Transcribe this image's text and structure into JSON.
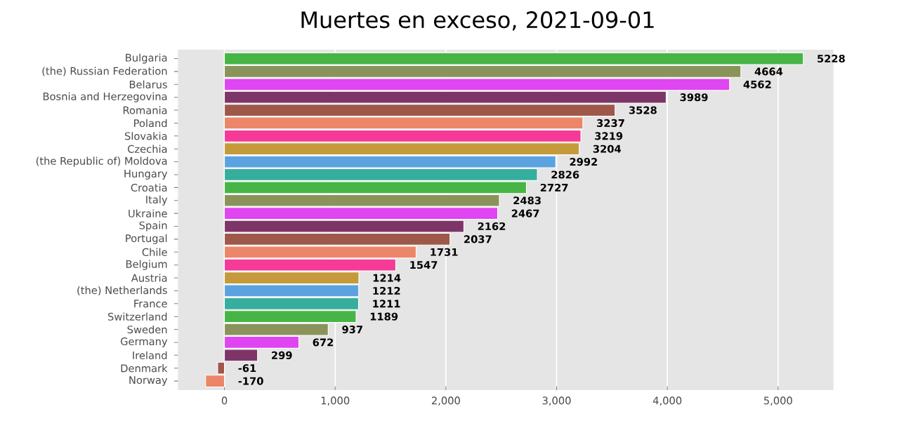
{
  "chart_data": {
    "type": "bar",
    "orientation": "horizontal",
    "title": "Muertes en exceso, 2021-09-01",
    "categories": [
      "Bulgaria",
      "(the) Russian Federation",
      "Belarus",
      "Bosnia and Herzegovina",
      "Romania",
      "Poland",
      "Slovakia",
      "Czechia",
      "(the Republic of) Moldova",
      "Hungary",
      "Croatia",
      "Italy",
      "Ukraine",
      "Spain",
      "Portugal",
      "Chile",
      "Belgium",
      "Austria",
      "(the) Netherlands",
      "France",
      "Switzerland",
      "Sweden",
      "Germany",
      "Ireland",
      "Denmark",
      "Norway"
    ],
    "values": [
      5228,
      4664,
      4562,
      3989,
      3528,
      3237,
      3219,
      3204,
      2992,
      2826,
      2727,
      2483,
      2467,
      2162,
      2037,
      1731,
      1547,
      1214,
      1212,
      1211,
      1189,
      937,
      672,
      299,
      -61,
      -170
    ],
    "colors": [
      "#46b545",
      "#8a935a",
      "#df45f0",
      "#7d3568",
      "#9e584a",
      "#ec8668",
      "#f53a98",
      "#c49a3a",
      "#5ba3e0",
      "#36ae9d",
      "#46b545",
      "#8a935a",
      "#df45f0",
      "#7d3568",
      "#9e584a",
      "#ec8668",
      "#f53a98",
      "#c49a3a",
      "#5ba3e0",
      "#36ae9d",
      "#46b545",
      "#8a935a",
      "#df45f0",
      "#7d3568",
      "#9e584a",
      "#ec8668"
    ],
    "xlim": [
      -420,
      5500
    ],
    "xticks": [
      0,
      {
        "value": 1000,
        "label": "1,000"
      },
      {
        "value": 2000,
        "label": "2,000"
      },
      {
        "value": 3000,
        "label": "3,000"
      },
      {
        "value": 4000,
        "label": "4,000"
      },
      {
        "value": 5000,
        "label": "5,000"
      }
    ],
    "grid": "x",
    "data_labels": true
  }
}
